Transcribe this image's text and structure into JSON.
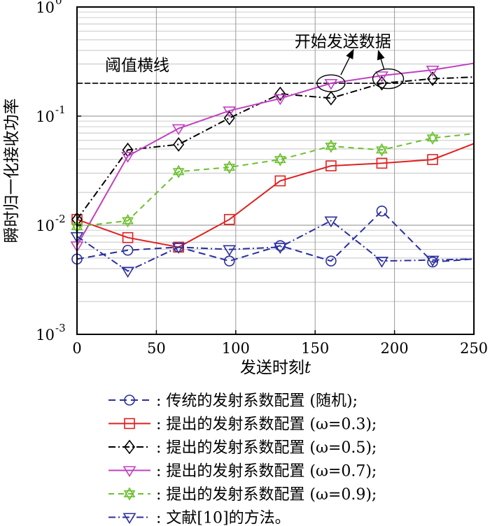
{
  "chart_data": {
    "type": "line",
    "xlabel": "发送时刻",
    "xlabel_var": "t",
    "ylabel": "瞬时归一化接收功率",
    "xlim": [
      0,
      250
    ],
    "ylim": [
      0.001,
      1
    ],
    "yscale": "log",
    "x_ticks": [
      "0",
      "50",
      "100",
      "150",
      "200",
      "250"
    ],
    "y_ticks": [
      {
        "base": "10",
        "exp": "-3",
        "value": 0.001
      },
      {
        "base": "10",
        "exp": "-2",
        "value": 0.01
      },
      {
        "base": "10",
        "exp": "-1",
        "value": 0.1
      },
      {
        "base": "10",
        "exp": "0",
        "value": 1
      }
    ],
    "grid": true,
    "threshold": {
      "label": "阈值横线",
      "value": 0.2,
      "color": "#000000"
    },
    "annotation": "开始发送数据",
    "x": [
      0,
      32,
      64,
      96,
      128,
      160,
      192,
      224
    ],
    "series": [
      {
        "name": "传统的发射系数配置 (随机);",
        "marker": "circle",
        "color": "#2b2f9e",
        "dash": "10,6",
        "values": [
          0.0049,
          0.0059,
          0.0063,
          0.0047,
          0.0065,
          0.0047,
          0.0135,
          0.0046
        ],
        "end": [
          250,
          0.0049
        ]
      },
      {
        "name": "提出的发射系数配置 (ω=0.3);",
        "marker": "square",
        "color": "#e02020",
        "dash": "",
        "values": [
          0.0113,
          0.0077,
          0.0063,
          0.0113,
          0.0255,
          0.035,
          0.037,
          0.04
        ],
        "end": [
          250,
          0.056
        ]
      },
      {
        "name": "提出的发射系数配置 (ω=0.5);",
        "marker": "diamond",
        "color": "#000000",
        "dash": "10,4,2,4",
        "values": [
          0.0113,
          0.049,
          0.055,
          0.096,
          0.16,
          0.146,
          0.2,
          0.22
        ],
        "end": [
          250,
          0.228
        ]
      },
      {
        "name": "提出的发射系数配置 (ω=0.7);",
        "marker": "triangle-down",
        "color": "#c040c0",
        "dash": "",
        "values": [
          0.0065,
          0.043,
          0.077,
          0.112,
          0.145,
          0.2,
          0.235,
          0.265
        ],
        "end": [
          250,
          0.305
        ]
      },
      {
        "name": "提出的发射系数配置 (ω=0.9);",
        "marker": "star",
        "color": "#6cc030",
        "dash": "8,6",
        "values": [
          0.0097,
          0.011,
          0.031,
          0.034,
          0.04,
          0.053,
          0.049,
          0.063
        ],
        "end": [
          250,
          0.069
        ]
      },
      {
        "name": "文献[10]的方法。",
        "marker": "triangle-down",
        "color": "#2b2f9e",
        "dash": "10,4,2,4",
        "values": [
          0.0079,
          0.0038,
          0.0063,
          0.006,
          0.0063,
          0.011,
          0.0047,
          0.0048
        ],
        "end": [
          250,
          0.0049
        ]
      }
    ]
  }
}
